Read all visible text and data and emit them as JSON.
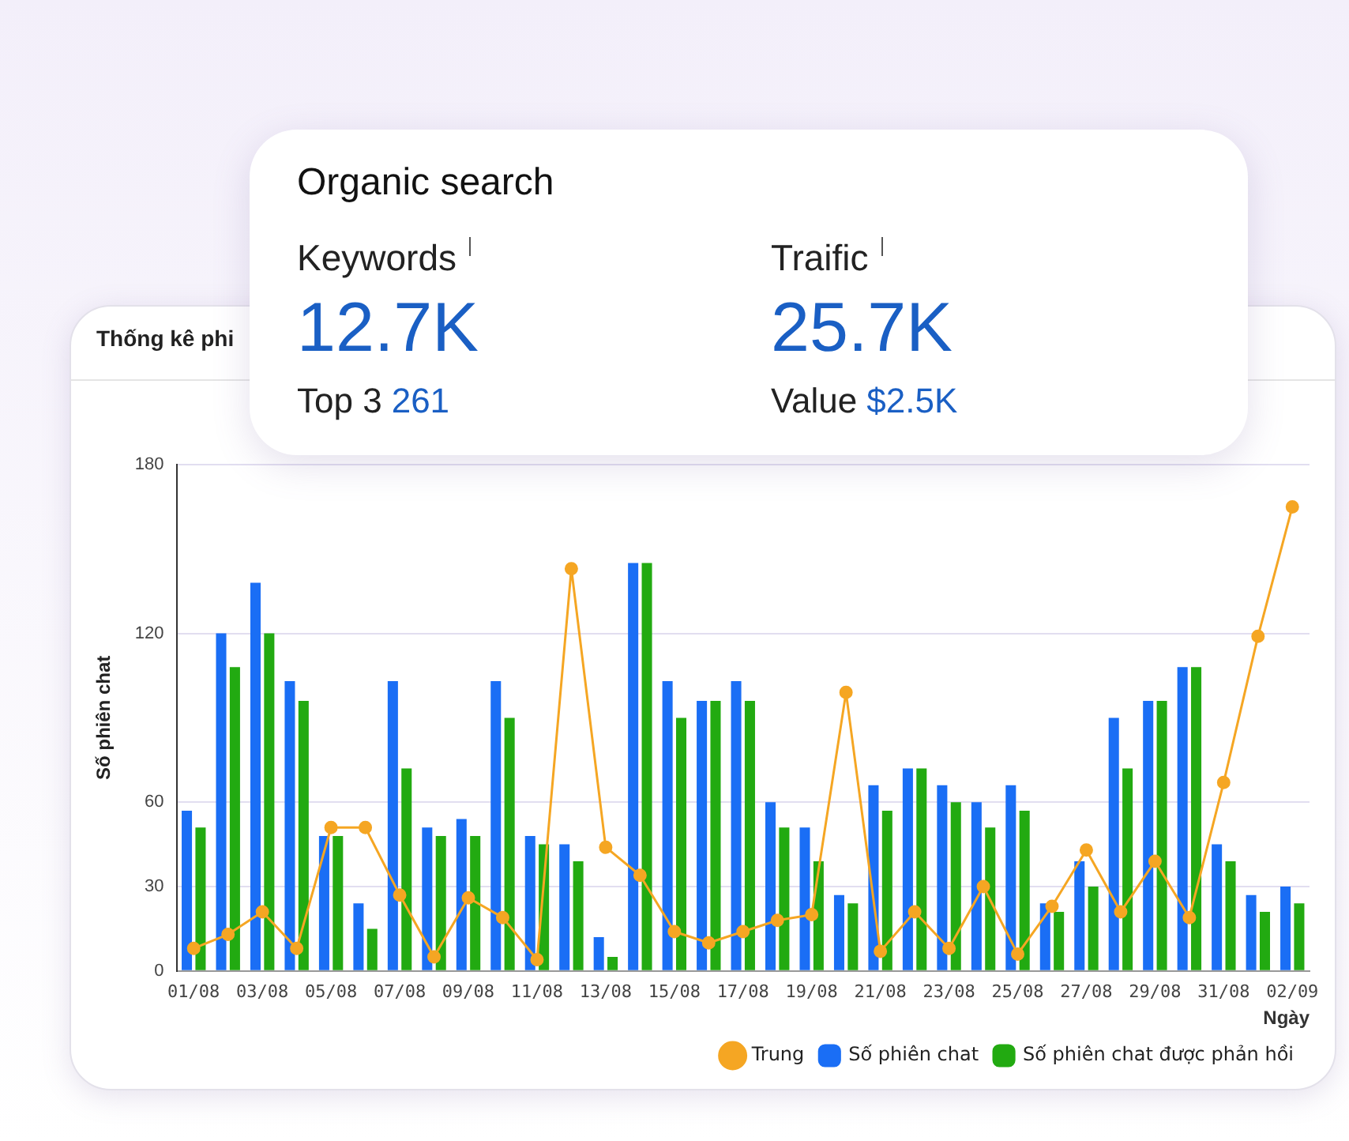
{
  "chart_data": [
    {
      "type": "other",
      "title": "Organic search",
      "annotations": [
        "Keywords",
        "12.7K",
        "Top 3",
        "261",
        "Traific",
        "25.7K",
        "Value",
        "$2.5K"
      ]
    },
    {
      "type": "bar",
      "title": "Thống kê phi",
      "xlabel": "Ngày",
      "ylabel": "Số phiên chat",
      "categories": [
        "01/08",
        null,
        "03/08",
        null,
        "05/08",
        null,
        "07/08",
        null,
        "09/08",
        null,
        "11/08",
        null,
        "13/08",
        null,
        "15/08",
        null,
        "17/08",
        null,
        "19/08",
        null,
        "21/08",
        null,
        "23/08",
        null,
        "25/08",
        null,
        "27/08",
        null,
        "29/08",
        null,
        "31/08",
        null,
        "02/09"
      ],
      "series": [
        {
          "name": "Số phiên chat",
          "color": "#1a6ef5",
          "values": [
            57,
            120,
            138,
            103,
            48,
            24,
            103,
            51,
            54,
            103,
            48,
            45,
            12,
            145,
            103,
            96,
            103,
            60,
            51,
            27,
            66,
            72,
            66,
            60,
            66,
            24,
            39,
            90,
            96,
            108,
            45,
            27,
            30
          ]
        },
        {
          "name": "Số phiên chat được phản hồi",
          "color": "#22aa11",
          "values": [
            51,
            108,
            120,
            96,
            48,
            15,
            72,
            48,
            48,
            90,
            45,
            39,
            5,
            145,
            90,
            96,
            96,
            51,
            39,
            24,
            57,
            72,
            60,
            51,
            57,
            21,
            30,
            72,
            96,
            108,
            39,
            21,
            24
          ]
        },
        {
          "name": "Trung",
          "type": "line",
          "color": "#f5a623",
          "values": [
            8,
            13,
            21,
            8,
            51,
            51,
            27,
            5,
            26,
            19,
            4,
            143,
            44,
            34,
            14,
            10,
            14,
            18,
            20,
            99,
            7,
            21,
            8,
            30,
            6,
            23,
            43,
            21,
            39,
            19,
            67,
            119,
            165
          ]
        }
      ],
      "ylim": [
        0,
        180
      ],
      "yticks": [
        0,
        30,
        60,
        120,
        180
      ],
      "grid": "y",
      "legend": "bottom right",
      "marker": "circle"
    }
  ]
}
